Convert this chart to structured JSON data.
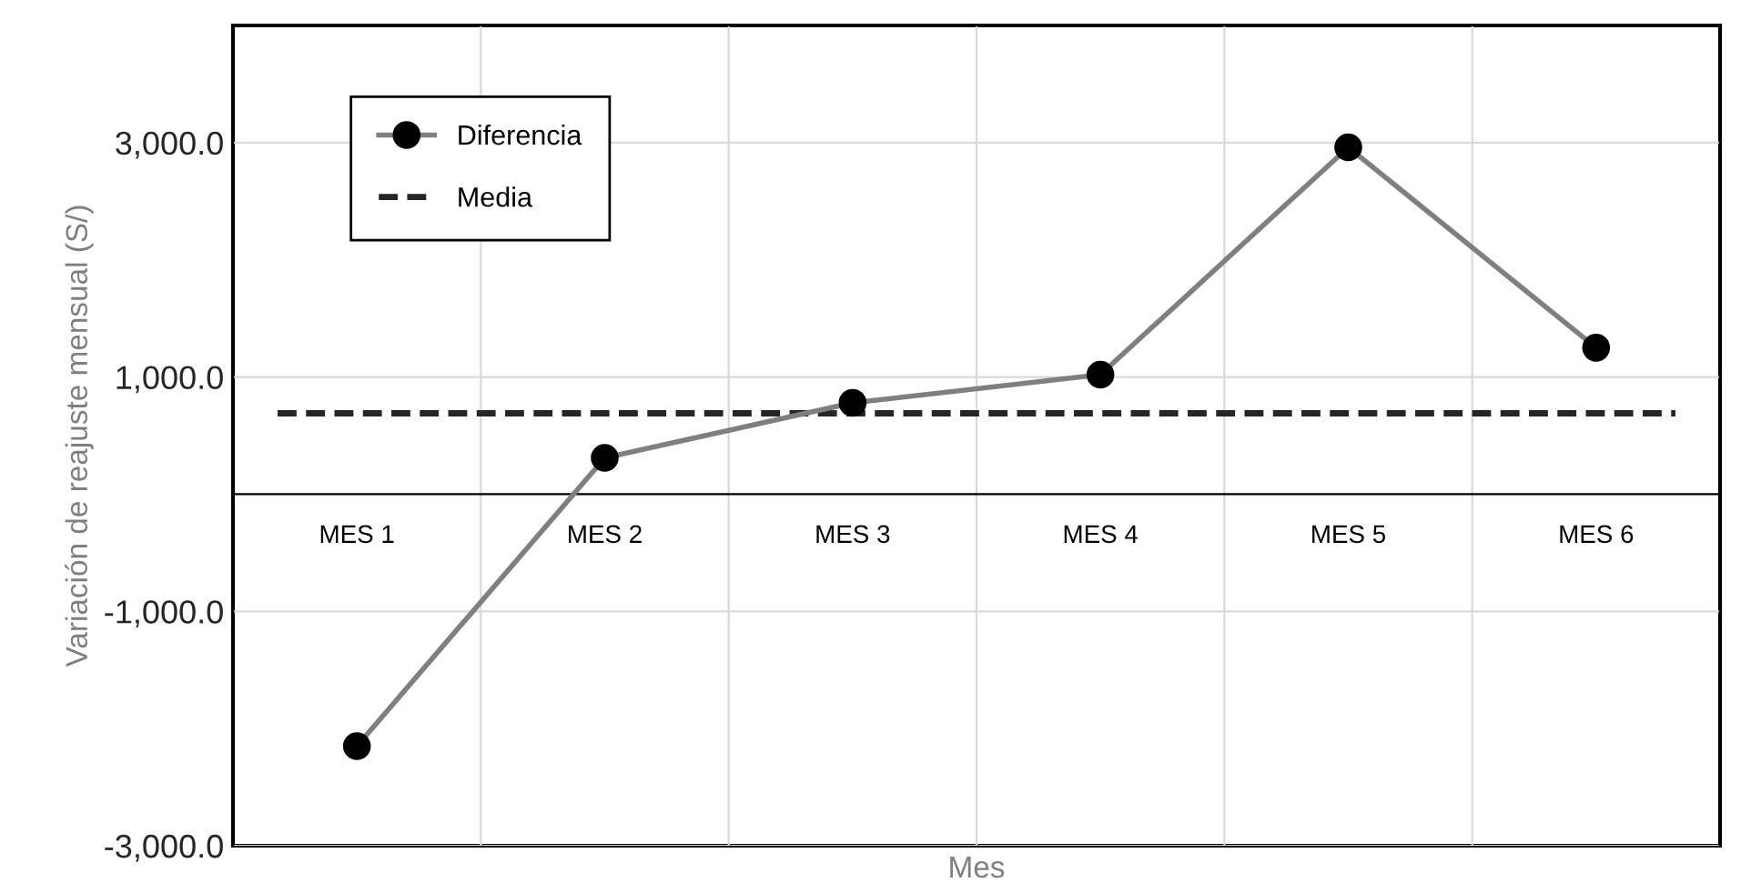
{
  "chart_data": {
    "type": "line",
    "xlabel": "Mes",
    "ylabel": "Variación de reajuste mensual (S/)",
    "categories": [
      "MES 1",
      "MES 2",
      "MES 3",
      "MES 4",
      "MES 5",
      "MES 6"
    ],
    "series": [
      {
        "name": "Diferencia",
        "color": "#7f7f7f",
        "values": [
          -2150,
          310,
          780,
          1020,
          2960,
          1250
        ],
        "marker": "circle",
        "line_style": "solid"
      }
    ],
    "ref_lines": [
      {
        "axis": "y",
        "value": 690,
        "label": "Media",
        "color": "#262626",
        "line_style": "dashed"
      }
    ],
    "ylim": [
      -3000,
      4000
    ],
    "yticks": [
      {
        "value": -3000,
        "label": "-3,000.0"
      },
      {
        "value": -1000,
        "label": "-1,000.0"
      },
      {
        "value": 1000,
        "label": "1,000.0"
      },
      {
        "value": 3000,
        "label": "3,000.0"
      }
    ],
    "grid": true,
    "legend": "top left"
  }
}
